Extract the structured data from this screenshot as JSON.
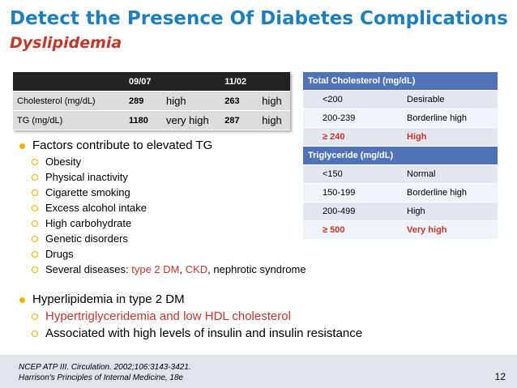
{
  "title": "Detect the Presence Of Diabetes Complications",
  "subtitle": "Dyslipidemia",
  "patient_table": {
    "headers": [
      "",
      "09/07",
      "",
      "11/02",
      ""
    ],
    "rows": [
      {
        "name": "Cholesterol (mg/dL)",
        "v1": "289",
        "l1": "high",
        "v2": "263",
        "l2": "high"
      },
      {
        "name": "TG (mg/dL)",
        "v1": "1180",
        "l1": "very high",
        "v2": "287",
        "l2": "high"
      }
    ]
  },
  "reference_table": {
    "chol_header": "Total Cholesterol  (mg/dL)",
    "chol_rows": [
      {
        "range": "<200",
        "label": "Desirable"
      },
      {
        "range": "200-239",
        "label": "Borderline high"
      },
      {
        "range": "≥ 240",
        "label": "High"
      }
    ],
    "tg_header": "Triglyceride  (mg/dL)",
    "tg_rows": [
      {
        "range": "<150",
        "label": "Normal"
      },
      {
        "range": "150-199",
        "label": "Borderline high"
      },
      {
        "range": "200-499",
        "label": "High"
      },
      {
        "range": "≥ 500",
        "label": "Very high"
      }
    ]
  },
  "bullets": {
    "tg_title": "Factors contribute to elevated  TG",
    "tg_items": [
      "Obesity",
      "Physical inactivity",
      "Cigarette smoking",
      "Excess alcohol intake",
      "High carbohydrate",
      "Genetic disorders",
      "Drugs"
    ],
    "diseases_prefix": "Several diseases: ",
    "disease_t2dm": "type 2 DM",
    "disease_sep": ", ",
    "disease_ckd": "CKD",
    "disease_suffix": ", nephrotic syndrome",
    "hyper_title": "Hyperlipidemia in type 2 DM",
    "hyper_items": [
      "Hypertriglyceridemia and low HDL cholesterol",
      "Associated with high levels of insulin and insulin resistance"
    ]
  },
  "references": [
    "NCEP ATP III. Circulation. 2002;106:3143-3421.",
    "Harrison's Principles of Internal Medicine, 18e"
  ],
  "page_number": "12",
  "colors": {
    "title": "#1f7fbd",
    "accent_red": "#c0392b",
    "bullet_gold": "#f0b400",
    "table_header_blue": "#4f72b8"
  }
}
